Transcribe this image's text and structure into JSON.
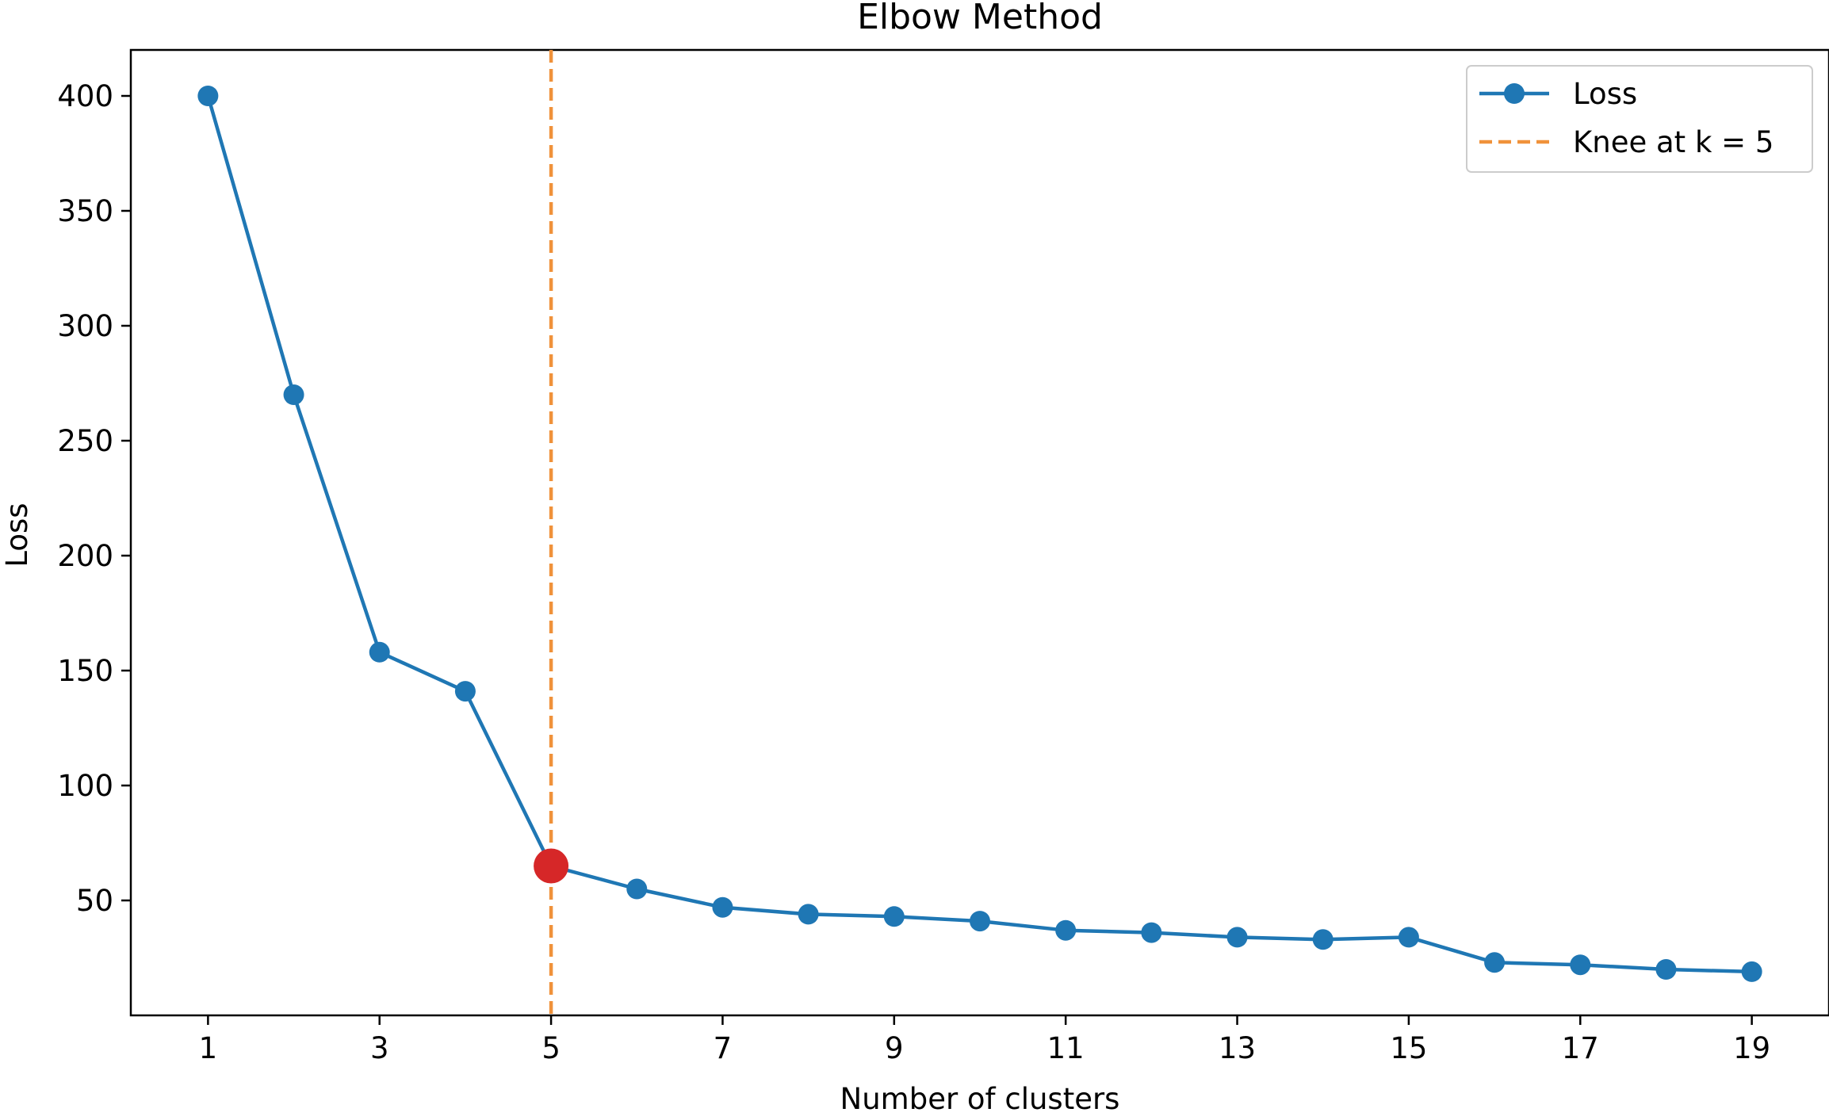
{
  "chart_data": {
    "type": "line",
    "title": "Elbow Method",
    "xlabel": "Number of clusters",
    "ylabel": "Loss",
    "xlim": [
      0.1,
      19.9
    ],
    "ylim": [
      0,
      420
    ],
    "xticks": [
      1,
      3,
      5,
      7,
      9,
      11,
      13,
      15,
      17,
      19
    ],
    "yticks": [
      50,
      100,
      150,
      200,
      250,
      300,
      350,
      400
    ],
    "grid": false,
    "legend_position": "top-right",
    "series": [
      {
        "name": "Loss",
        "color": "#1f77b4",
        "marker": "circle",
        "x": [
          1,
          2,
          3,
          4,
          5,
          6,
          7,
          8,
          9,
          10,
          11,
          12,
          13,
          14,
          15,
          16,
          17,
          18,
          19
        ],
        "values": [
          400,
          270,
          158,
          141,
          65,
          55,
          47,
          44,
          43,
          41,
          37,
          36,
          34,
          33,
          34,
          23,
          22,
          20,
          19
        ]
      }
    ],
    "knee": {
      "label": "Knee at k = 5",
      "x": 5,
      "y": 65,
      "line_color": "#f0923b",
      "line_style": "dashed",
      "marker_color": "#d62728"
    }
  }
}
